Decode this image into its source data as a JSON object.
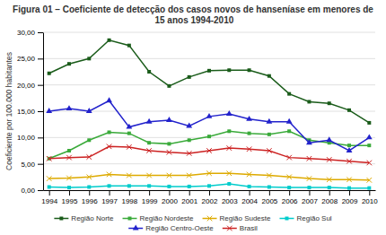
{
  "chart_data": {
    "type": "line",
    "title": "Figura 01  –  Coeficiente de detecção dos casos novos de hanseníase em menores de 15 anos 1994-2010",
    "ylabel": "Coeficiente por 100.000 habitantes",
    "x": [
      1994,
      1995,
      1996,
      1997,
      1998,
      1999,
      2000,
      2001,
      2002,
      2003,
      2004,
      2005,
      2006,
      2007,
      2008,
      2009,
      2010
    ],
    "series": [
      {
        "name": "Região Norte",
        "color": "#1a5c1a",
        "marker": "square",
        "values": [
          22.2,
          24.0,
          25.0,
          28.5,
          27.5,
          22.5,
          19.8,
          21.5,
          22.7,
          22.8,
          22.8,
          21.7,
          18.3,
          16.8,
          16.5,
          15.2,
          12.8
        ]
      },
      {
        "name": "Região Nordeste",
        "color": "#3aaa3a",
        "marker": "square",
        "values": [
          6.0,
          7.5,
          9.5,
          11.0,
          10.8,
          9.0,
          8.8,
          9.5,
          10.2,
          11.2,
          10.8,
          10.6,
          11.2,
          9.5,
          9.0,
          8.5,
          8.5
        ]
      },
      {
        "name": "Região Sudeste",
        "color": "#ddaa00",
        "marker": "x",
        "values": [
          2.2,
          2.3,
          2.5,
          3.0,
          2.8,
          2.8,
          2.8,
          2.8,
          3.2,
          3.2,
          3.0,
          2.8,
          2.5,
          2.2,
          2.0,
          2.0,
          1.9
        ]
      },
      {
        "name": "Região Sul",
        "color": "#00cccc",
        "marker": "square",
        "values": [
          0.6,
          0.5,
          0.6,
          0.8,
          0.8,
          0.8,
          0.7,
          0.7,
          0.8,
          1.2,
          0.7,
          0.6,
          0.5,
          0.5,
          0.5,
          0.4,
          0.4
        ]
      },
      {
        "name": "Região Centro-Oeste",
        "color": "#2222cc",
        "marker": "triangle",
        "values": [
          15.0,
          15.5,
          15.0,
          17.0,
          12.0,
          13.0,
          13.3,
          12.2,
          14.0,
          14.5,
          13.5,
          13.0,
          13.0,
          9.0,
          9.5,
          7.5,
          10.0
        ]
      },
      {
        "name": "Brasil",
        "color": "#cc2222",
        "marker": "x",
        "values": [
          6.0,
          6.2,
          6.3,
          8.3,
          8.2,
          7.5,
          7.2,
          7.0,
          7.5,
          8.0,
          7.8,
          7.5,
          6.2,
          6.0,
          5.8,
          5.5,
          5.2
        ]
      }
    ],
    "xlim": [
      1993.7,
      2010.3
    ],
    "xticks": [
      1994,
      1995,
      1996,
      1997,
      1998,
      1999,
      2000,
      2001,
      2002,
      2003,
      2004,
      2005,
      2006,
      2007,
      2008,
      2009,
      2010
    ],
    "ylim": [
      0,
      30
    ],
    "yticks": [
      {
        "value": 0,
        "label": "0,00"
      },
      {
        "value": 5.0,
        "label": "5,00"
      },
      {
        "value": 10.0,
        "label": "10,00"
      },
      {
        "value": 15.0,
        "label": "15,00"
      },
      {
        "value": 20.0,
        "label": "20,00"
      },
      {
        "value": 25.0,
        "label": "25,00"
      },
      {
        "value": 30.0,
        "label": "30,00"
      }
    ],
    "grid": true,
    "legend": "bottom"
  }
}
